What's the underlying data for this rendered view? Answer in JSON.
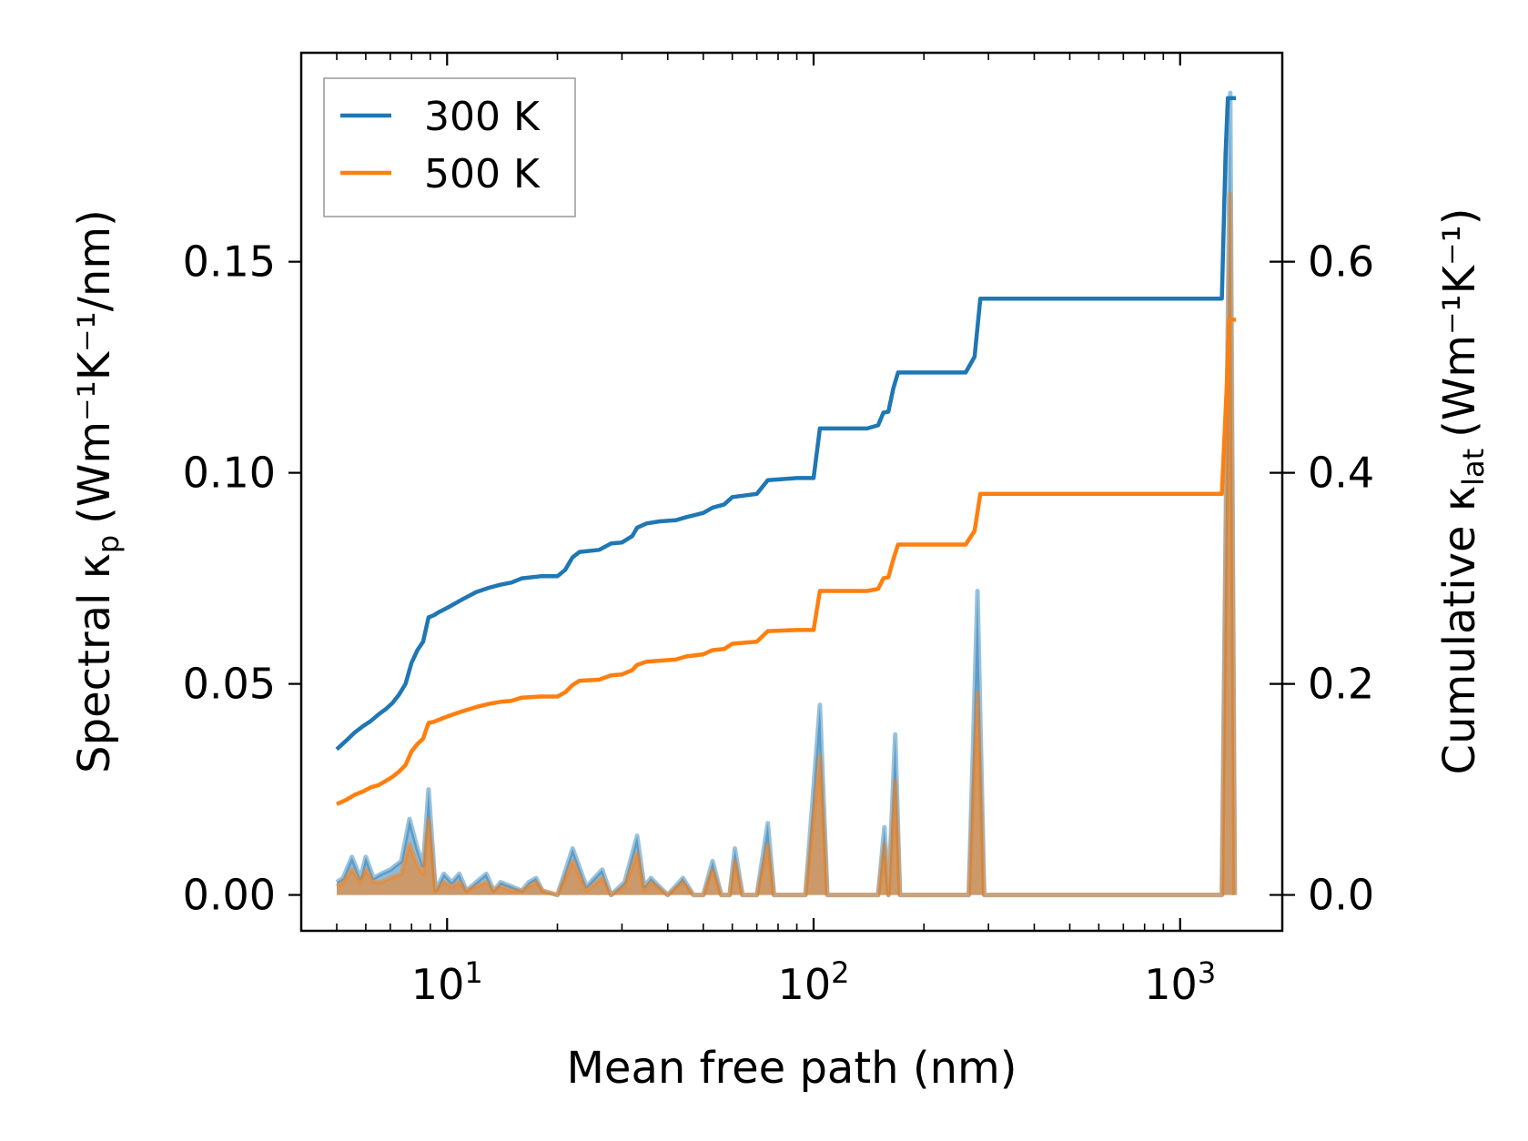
{
  "chart_data": {
    "type": "line",
    "title": "",
    "xlabel": "Mean free path (nm)",
    "ylabel_left_text": "Spectral κ",
    "ylabel_left_sub": "p",
    "ylabel_left_unit": "(Wm⁻¹K⁻¹/nm)",
    "ylabel_right_text": "Cumulative κ",
    "ylabel_right_sub": "lat",
    "ylabel_right_unit": "(Wm⁻¹K⁻¹)",
    "x_scale": "log",
    "xlim": [
      4,
      1900
    ],
    "ylim_left": [
      -0.0085,
      0.1995
    ],
    "ylim_right": [
      -0.034,
      0.798
    ],
    "x_ticks": [
      {
        "value": 10,
        "base": "10",
        "exp": "1"
      },
      {
        "value": 100,
        "base": "10",
        "exp": "2"
      },
      {
        "value": 1000,
        "base": "10",
        "exp": "3"
      }
    ],
    "y_ticks_left": [
      {
        "value": 0.0,
        "label": "0.00"
      },
      {
        "value": 0.05,
        "label": "0.05"
      },
      {
        "value": 0.1,
        "label": "0.10"
      },
      {
        "value": 0.15,
        "label": "0.15"
      }
    ],
    "y_ticks_right": [
      {
        "value": 0.0,
        "label": "0.0"
      },
      {
        "value": 0.2,
        "label": "0.2"
      },
      {
        "value": 0.4,
        "label": "0.4"
      },
      {
        "value": 0.6,
        "label": "0.6"
      }
    ],
    "legend_location": "top-left",
    "series": [
      {
        "name": "300 K",
        "color": "#1f77b4",
        "cumulative": [
          [
            5.0,
            0.138
          ],
          [
            5.3,
            0.146
          ],
          [
            5.6,
            0.154
          ],
          [
            5.9,
            0.16
          ],
          [
            6.2,
            0.165
          ],
          [
            6.5,
            0.171
          ],
          [
            6.8,
            0.176
          ],
          [
            7.1,
            0.182
          ],
          [
            7.4,
            0.19
          ],
          [
            7.7,
            0.2
          ],
          [
            8.0,
            0.22
          ],
          [
            8.3,
            0.232
          ],
          [
            8.6,
            0.24
          ],
          [
            8.9,
            0.263
          ],
          [
            9.2,
            0.265
          ],
          [
            9.5,
            0.268
          ],
          [
            10.0,
            0.272
          ],
          [
            11.0,
            0.28
          ],
          [
            12.0,
            0.287
          ],
          [
            13.0,
            0.291
          ],
          [
            14.0,
            0.294
          ],
          [
            15.0,
            0.296
          ],
          [
            16.0,
            0.3
          ],
          [
            18.0,
            0.302
          ],
          [
            20.0,
            0.302
          ],
          [
            21.0,
            0.308
          ],
          [
            22.0,
            0.32
          ],
          [
            23.0,
            0.325
          ],
          [
            26.0,
            0.327
          ],
          [
            28.0,
            0.333
          ],
          [
            30.0,
            0.334
          ],
          [
            32.0,
            0.34
          ],
          [
            33.0,
            0.348
          ],
          [
            35.0,
            0.352
          ],
          [
            38.0,
            0.354
          ],
          [
            42.0,
            0.355
          ],
          [
            45.0,
            0.358
          ],
          [
            50.0,
            0.362
          ],
          [
            53.0,
            0.367
          ],
          [
            57.0,
            0.37
          ],
          [
            60.0,
            0.377
          ],
          [
            70.0,
            0.38
          ],
          [
            75.0,
            0.393
          ],
          [
            90.0,
            0.395
          ],
          [
            100.0,
            0.395
          ],
          [
            104.0,
            0.442
          ],
          [
            140.0,
            0.442
          ],
          [
            150.0,
            0.445
          ],
          [
            155.0,
            0.457
          ],
          [
            160.0,
            0.458
          ],
          [
            165.0,
            0.48
          ],
          [
            170.0,
            0.495
          ],
          [
            260.0,
            0.495
          ],
          [
            275.0,
            0.51
          ],
          [
            285.0,
            0.565
          ],
          [
            1300.0,
            0.565
          ],
          [
            1330.0,
            0.7
          ],
          [
            1350.0,
            0.755
          ],
          [
            1420.0,
            0.755
          ]
        ],
        "spectral": [
          [
            5.0,
            0.003
          ],
          [
            5.2,
            0.004
          ],
          [
            5.5,
            0.009
          ],
          [
            5.8,
            0.004
          ],
          [
            6.0,
            0.009
          ],
          [
            6.3,
            0.004
          ],
          [
            6.6,
            0.005
          ],
          [
            7.0,
            0.006
          ],
          [
            7.5,
            0.008
          ],
          [
            7.9,
            0.018
          ],
          [
            8.3,
            0.011
          ],
          [
            8.6,
            0.007
          ],
          [
            8.9,
            0.025
          ],
          [
            9.3,
            0.001
          ],
          [
            9.8,
            0.005
          ],
          [
            10.3,
            0.003
          ],
          [
            10.8,
            0.005
          ],
          [
            11.3,
            0.001
          ],
          [
            12.0,
            0.003
          ],
          [
            12.8,
            0.005
          ],
          [
            13.4,
            0.001
          ],
          [
            14.0,
            0.003
          ],
          [
            15.0,
            0.002
          ],
          [
            16.0,
            0.001
          ],
          [
            16.7,
            0.003
          ],
          [
            17.5,
            0.004
          ],
          [
            18.2,
            0.001
          ],
          [
            20.0,
            0.0
          ],
          [
            22.0,
            0.011
          ],
          [
            24.0,
            0.002
          ],
          [
            26.5,
            0.006
          ],
          [
            28.0,
            0.0
          ],
          [
            30.5,
            0.003
          ],
          [
            33.0,
            0.014
          ],
          [
            34.5,
            0.002
          ],
          [
            36.0,
            0.004
          ],
          [
            40.0,
            0.0
          ],
          [
            44.0,
            0.004
          ],
          [
            47.0,
            0.0
          ],
          [
            50.0,
            0.0
          ],
          [
            53.0,
            0.008
          ],
          [
            56.0,
            0.0
          ],
          [
            59.0,
            0.0
          ],
          [
            61.0,
            0.011
          ],
          [
            64.0,
            0.0
          ],
          [
            70.0,
            0.0
          ],
          [
            75.0,
            0.017
          ],
          [
            78.0,
            0.0
          ],
          [
            95.0,
            0.0
          ],
          [
            104.0,
            0.045
          ],
          [
            109.0,
            0.0
          ],
          [
            150.0,
            0.0
          ],
          [
            156.0,
            0.016
          ],
          [
            160.0,
            0.0
          ],
          [
            167.0,
            0.038
          ],
          [
            172.0,
            0.0
          ],
          [
            265.0,
            0.0
          ],
          [
            280.0,
            0.072
          ],
          [
            292.0,
            0.0
          ],
          [
            1300.0,
            0.0
          ],
          [
            1370.0,
            0.19
          ],
          [
            1410.0,
            0.0
          ]
        ]
      },
      {
        "name": "500 K",
        "color": "#ff7f0e",
        "cumulative": [
          [
            5.0,
            0.086
          ],
          [
            5.3,
            0.09
          ],
          [
            5.6,
            0.095
          ],
          [
            5.9,
            0.098
          ],
          [
            6.2,
            0.102
          ],
          [
            6.5,
            0.104
          ],
          [
            6.8,
            0.108
          ],
          [
            7.1,
            0.112
          ],
          [
            7.4,
            0.117
          ],
          [
            7.7,
            0.123
          ],
          [
            8.0,
            0.136
          ],
          [
            8.3,
            0.143
          ],
          [
            8.6,
            0.148
          ],
          [
            8.9,
            0.163
          ],
          [
            9.2,
            0.164
          ],
          [
            9.5,
            0.166
          ],
          [
            10.0,
            0.169
          ],
          [
            11.0,
            0.174
          ],
          [
            12.0,
            0.178
          ],
          [
            13.0,
            0.181
          ],
          [
            14.0,
            0.183
          ],
          [
            15.0,
            0.184
          ],
          [
            16.0,
            0.187
          ],
          [
            18.0,
            0.188
          ],
          [
            20.0,
            0.188
          ],
          [
            21.0,
            0.192
          ],
          [
            22.0,
            0.199
          ],
          [
            23.0,
            0.203
          ],
          [
            26.0,
            0.204
          ],
          [
            28.0,
            0.208
          ],
          [
            30.0,
            0.209
          ],
          [
            32.0,
            0.213
          ],
          [
            33.0,
            0.218
          ],
          [
            35.0,
            0.221
          ],
          [
            38.0,
            0.222
          ],
          [
            42.0,
            0.223
          ],
          [
            45.0,
            0.226
          ],
          [
            50.0,
            0.228
          ],
          [
            53.0,
            0.232
          ],
          [
            57.0,
            0.233
          ],
          [
            60.0,
            0.238
          ],
          [
            70.0,
            0.24
          ],
          [
            75.0,
            0.25
          ],
          [
            90.0,
            0.251
          ],
          [
            100.0,
            0.251
          ],
          [
            104.0,
            0.288
          ],
          [
            140.0,
            0.288
          ],
          [
            150.0,
            0.29
          ],
          [
            155.0,
            0.3
          ],
          [
            160.0,
            0.301
          ],
          [
            165.0,
            0.318
          ],
          [
            170.0,
            0.332
          ],
          [
            260.0,
            0.332
          ],
          [
            275.0,
            0.345
          ],
          [
            285.0,
            0.38
          ],
          [
            1300.0,
            0.38
          ],
          [
            1340.0,
            0.48
          ],
          [
            1360.0,
            0.545
          ],
          [
            1420.0,
            0.545
          ]
        ],
        "spectral": [
          [
            5.0,
            0.002
          ],
          [
            5.2,
            0.003
          ],
          [
            5.5,
            0.006
          ],
          [
            5.8,
            0.003
          ],
          [
            6.0,
            0.006
          ],
          [
            6.3,
            0.003
          ],
          [
            6.6,
            0.003
          ],
          [
            7.0,
            0.004
          ],
          [
            7.5,
            0.005
          ],
          [
            7.9,
            0.012
          ],
          [
            8.3,
            0.007
          ],
          [
            8.6,
            0.005
          ],
          [
            8.9,
            0.018
          ],
          [
            9.3,
            0.001
          ],
          [
            9.8,
            0.003
          ],
          [
            10.3,
            0.002
          ],
          [
            10.8,
            0.003
          ],
          [
            11.3,
            0.001
          ],
          [
            12.0,
            0.002
          ],
          [
            12.8,
            0.003
          ],
          [
            13.4,
            0.001
          ],
          [
            14.0,
            0.002
          ],
          [
            15.0,
            0.001
          ],
          [
            16.0,
            0.001
          ],
          [
            16.7,
            0.002
          ],
          [
            17.5,
            0.003
          ],
          [
            18.2,
            0.001
          ],
          [
            20.0,
            0.0
          ],
          [
            22.0,
            0.008
          ],
          [
            24.0,
            0.001
          ],
          [
            26.5,
            0.004
          ],
          [
            28.0,
            0.0
          ],
          [
            30.5,
            0.002
          ],
          [
            33.0,
            0.01
          ],
          [
            34.5,
            0.001
          ],
          [
            36.0,
            0.003
          ],
          [
            40.0,
            0.0
          ],
          [
            44.0,
            0.003
          ],
          [
            47.0,
            0.0
          ],
          [
            50.0,
            0.0
          ],
          [
            53.0,
            0.006
          ],
          [
            56.0,
            0.0
          ],
          [
            59.0,
            0.0
          ],
          [
            61.0,
            0.008
          ],
          [
            64.0,
            0.0
          ],
          [
            70.0,
            0.0
          ],
          [
            75.0,
            0.012
          ],
          [
            78.0,
            0.0
          ],
          [
            95.0,
            0.0
          ],
          [
            104.0,
            0.033
          ],
          [
            109.0,
            0.0
          ],
          [
            150.0,
            0.0
          ],
          [
            156.0,
            0.012
          ],
          [
            160.0,
            0.0
          ],
          [
            167.0,
            0.027
          ],
          [
            172.0,
            0.0
          ],
          [
            265.0,
            0.0
          ],
          [
            280.0,
            0.048
          ],
          [
            292.0,
            0.0
          ],
          [
            1300.0,
            0.0
          ],
          [
            1370.0,
            0.166
          ],
          [
            1410.0,
            0.0
          ]
        ]
      }
    ]
  }
}
